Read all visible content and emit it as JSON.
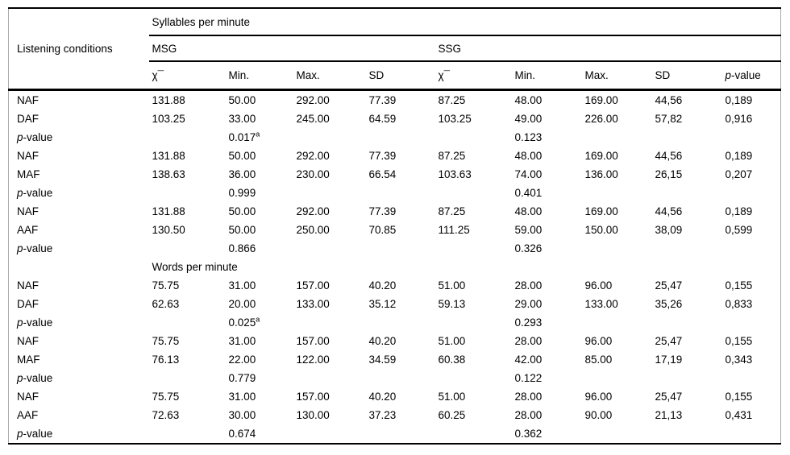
{
  "table": {
    "row_header": "Listening conditions",
    "span_title": "Syllables per minute",
    "groups": [
      {
        "label": "MSG",
        "span": 4
      },
      {
        "label": "SSG",
        "span": 5
      }
    ],
    "columns": [
      {
        "v": "χ¯"
      },
      {
        "v": "Min."
      },
      {
        "v": "Max."
      },
      {
        "v": "SD"
      },
      {
        "v": "χ¯"
      },
      {
        "v": "Min."
      },
      {
        "v": "Max."
      },
      {
        "v": "SD"
      },
      {
        "ip": "p",
        "v": "-value"
      }
    ],
    "rows": [
      {
        "label": {
          "v": "NAF"
        },
        "cells": [
          {
            "v": "131.88"
          },
          {
            "v": "50.00"
          },
          {
            "v": "292.00"
          },
          {
            "v": "77.39"
          },
          {
            "v": "87.25"
          },
          {
            "v": "48.00"
          },
          {
            "v": "169.00"
          },
          {
            "v": "44,56"
          },
          {
            "v": "0,189"
          }
        ]
      },
      {
        "label": {
          "v": "DAF"
        },
        "cells": [
          {
            "v": "103.25"
          },
          {
            "v": "33.00"
          },
          {
            "v": "245.00"
          },
          {
            "v": "64.59"
          },
          {
            "v": "103.25"
          },
          {
            "v": "49.00"
          },
          {
            "v": "226.00"
          },
          {
            "v": "57,82"
          },
          {
            "v": "0,916"
          }
        ]
      },
      {
        "label": {
          "ip": "p",
          "v": "-value"
        },
        "cells": [
          {
            "v": ""
          },
          {
            "v": "0.017",
            "sup": "a"
          },
          {
            "v": ""
          },
          {
            "v": ""
          },
          {
            "v": ""
          },
          {
            "v": "0.123"
          },
          {
            "v": ""
          },
          {
            "v": ""
          },
          {
            "v": ""
          }
        ]
      },
      {
        "label": {
          "v": "NAF"
        },
        "cells": [
          {
            "v": "131.88"
          },
          {
            "v": "50.00"
          },
          {
            "v": "292.00"
          },
          {
            "v": "77.39"
          },
          {
            "v": "87.25"
          },
          {
            "v": "48.00"
          },
          {
            "v": "169.00"
          },
          {
            "v": "44,56"
          },
          {
            "v": "0,189"
          }
        ]
      },
      {
        "label": {
          "v": "MAF"
        },
        "cells": [
          {
            "v": "138.63"
          },
          {
            "v": "36.00"
          },
          {
            "v": "230.00"
          },
          {
            "v": "66.54"
          },
          {
            "v": "103.63"
          },
          {
            "v": "74.00"
          },
          {
            "v": "136.00"
          },
          {
            "v": "26,15"
          },
          {
            "v": "0,207"
          }
        ]
      },
      {
        "label": {
          "ip": "p",
          "v": "-value"
        },
        "cells": [
          {
            "v": ""
          },
          {
            "v": "0.999"
          },
          {
            "v": ""
          },
          {
            "v": ""
          },
          {
            "v": ""
          },
          {
            "v": "0.401"
          },
          {
            "v": ""
          },
          {
            "v": ""
          },
          {
            "v": ""
          }
        ]
      },
      {
        "label": {
          "v": "NAF"
        },
        "cells": [
          {
            "v": "131.88"
          },
          {
            "v": "50.00"
          },
          {
            "v": "292.00"
          },
          {
            "v": "77.39"
          },
          {
            "v": "87.25"
          },
          {
            "v": "48.00"
          },
          {
            "v": "169.00"
          },
          {
            "v": "44,56"
          },
          {
            "v": "0,189"
          }
        ]
      },
      {
        "label": {
          "v": "AAF"
        },
        "cells": [
          {
            "v": "130.50"
          },
          {
            "v": "50.00"
          },
          {
            "v": "250.00"
          },
          {
            "v": "70.85"
          },
          {
            "v": "111.25"
          },
          {
            "v": "59.00"
          },
          {
            "v": "150.00"
          },
          {
            "v": "38,09"
          },
          {
            "v": "0,599"
          }
        ]
      },
      {
        "label": {
          "ip": "p",
          "v": "-value"
        },
        "cells": [
          {
            "v": ""
          },
          {
            "v": "0.866"
          },
          {
            "v": ""
          },
          {
            "v": ""
          },
          {
            "v": ""
          },
          {
            "v": "0.326"
          },
          {
            "v": ""
          },
          {
            "v": ""
          },
          {
            "v": ""
          }
        ]
      },
      {
        "section": "Words per minute"
      },
      {
        "label": {
          "v": "NAF"
        },
        "cells": [
          {
            "v": "75.75"
          },
          {
            "v": "31.00"
          },
          {
            "v": "157.00"
          },
          {
            "v": "40.20"
          },
          {
            "v": "51.00"
          },
          {
            "v": "28.00"
          },
          {
            "v": "96.00"
          },
          {
            "v": "25,47"
          },
          {
            "v": "0,155"
          }
        ]
      },
      {
        "label": {
          "v": "DAF"
        },
        "cells": [
          {
            "v": "62.63"
          },
          {
            "v": "20.00"
          },
          {
            "v": "133.00"
          },
          {
            "v": "35.12"
          },
          {
            "v": "59.13"
          },
          {
            "v": "29.00"
          },
          {
            "v": "133.00"
          },
          {
            "v": "35,26"
          },
          {
            "v": "0,833"
          }
        ]
      },
      {
        "label": {
          "ip": "p",
          "v": "-value"
        },
        "cells": [
          {
            "v": ""
          },
          {
            "v": "0.025",
            "sup": "a"
          },
          {
            "v": ""
          },
          {
            "v": ""
          },
          {
            "v": ""
          },
          {
            "v": "0.293"
          },
          {
            "v": ""
          },
          {
            "v": ""
          },
          {
            "v": ""
          }
        ]
      },
      {
        "label": {
          "v": "NAF"
        },
        "cells": [
          {
            "v": "75.75"
          },
          {
            "v": "31.00"
          },
          {
            "v": "157.00"
          },
          {
            "v": "40.20"
          },
          {
            "v": "51.00"
          },
          {
            "v": "28.00"
          },
          {
            "v": "96.00"
          },
          {
            "v": "25,47"
          },
          {
            "v": "0,155"
          }
        ]
      },
      {
        "label": {
          "v": "MAF"
        },
        "cells": [
          {
            "v": "76.13"
          },
          {
            "v": "22.00"
          },
          {
            "v": "122.00"
          },
          {
            "v": "34.59"
          },
          {
            "v": "60.38"
          },
          {
            "v": "42.00"
          },
          {
            "v": "85.00"
          },
          {
            "v": "17,19"
          },
          {
            "v": "0,343"
          }
        ]
      },
      {
        "label": {
          "ip": "p",
          "v": "-value"
        },
        "cells": [
          {
            "v": ""
          },
          {
            "v": "0.779"
          },
          {
            "v": ""
          },
          {
            "v": ""
          },
          {
            "v": ""
          },
          {
            "v": "0.122"
          },
          {
            "v": ""
          },
          {
            "v": ""
          },
          {
            "v": ""
          }
        ]
      },
      {
        "label": {
          "v": "NAF"
        },
        "cells": [
          {
            "v": "75.75"
          },
          {
            "v": "31.00"
          },
          {
            "v": "157.00"
          },
          {
            "v": "40.20"
          },
          {
            "v": "51.00"
          },
          {
            "v": "28.00"
          },
          {
            "v": "96.00"
          },
          {
            "v": "25,47"
          },
          {
            "v": "0,155"
          }
        ]
      },
      {
        "label": {
          "v": "AAF"
        },
        "cells": [
          {
            "v": "72.63"
          },
          {
            "v": "30.00"
          },
          {
            "v": "130.00"
          },
          {
            "v": "37.23"
          },
          {
            "v": "60.25"
          },
          {
            "v": "28.00"
          },
          {
            "v": "90.00"
          },
          {
            "v": "21,13"
          },
          {
            "v": "0,431"
          }
        ]
      },
      {
        "label": {
          "ip": "p",
          "v": "-value"
        },
        "cells": [
          {
            "v": ""
          },
          {
            "v": "0.674"
          },
          {
            "v": ""
          },
          {
            "v": ""
          },
          {
            "v": ""
          },
          {
            "v": "0.362"
          },
          {
            "v": ""
          },
          {
            "v": ""
          },
          {
            "v": ""
          }
        ]
      }
    ]
  }
}
